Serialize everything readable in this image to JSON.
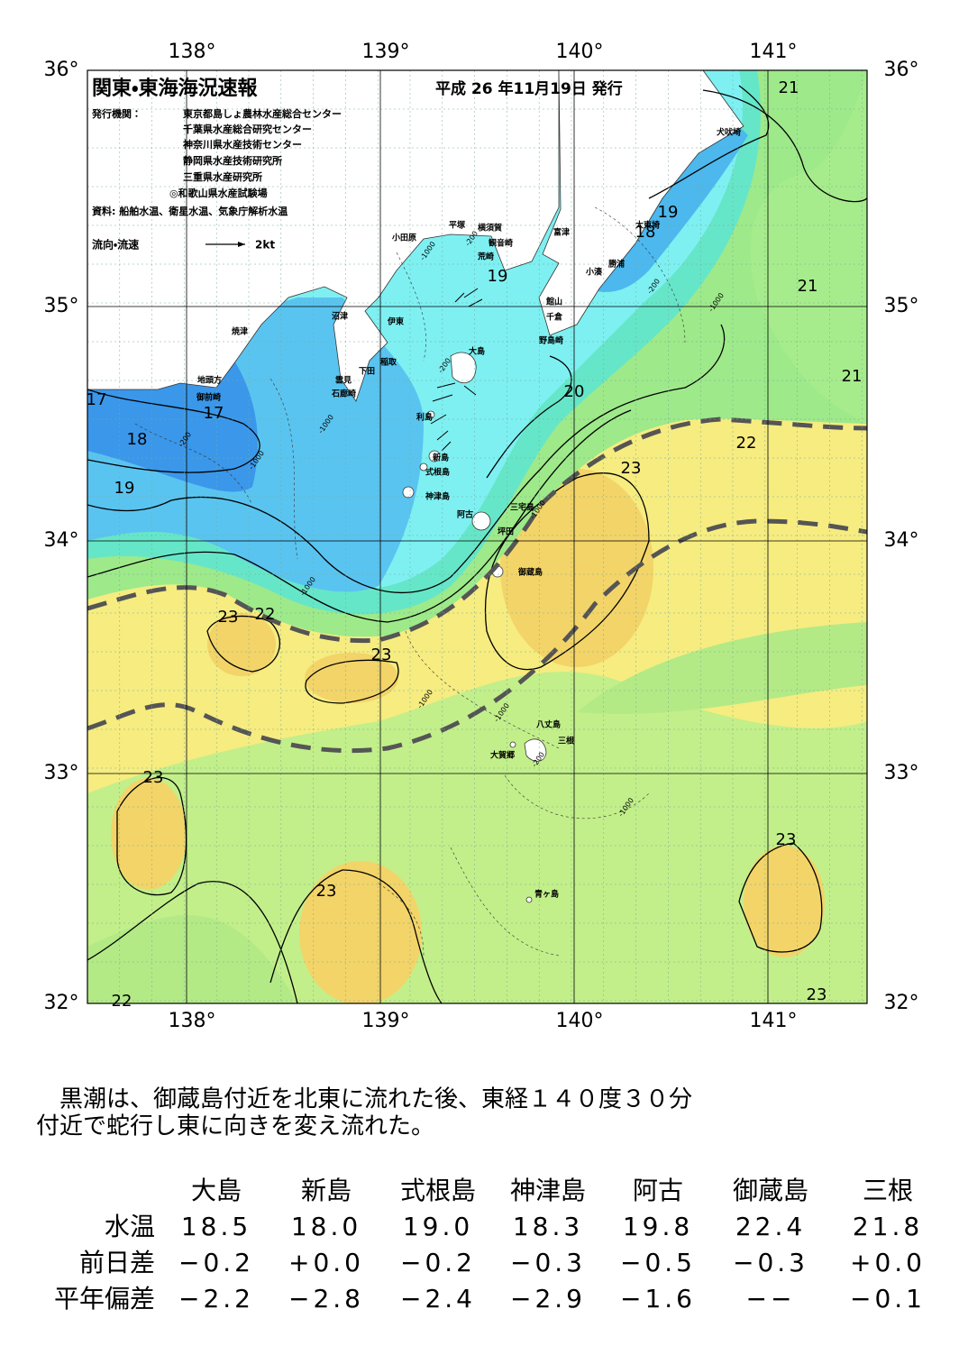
{
  "header": {
    "title": "関東・東海海況速報",
    "issued": "平成 26 年11月19日 発行",
    "issuer_label": "発行機関：",
    "issuers": [
      "東京都島しょ農林水産総合センター",
      "千葉県水産総合研究センター",
      "神奈川県水産技術センター",
      "静岡県水産技術研究所",
      "三重県水産研究所",
      "◎和歌山県水産試験場"
    ],
    "source": "資料: 船舶水温、衛星水温、気象庁解析水温",
    "current_legend": "流向・流速",
    "current_scale": "2kt"
  },
  "map": {
    "lon_labels": [
      "138°",
      "139°",
      "140°",
      "141°"
    ],
    "lat_labels": [
      "36°",
      "35°",
      "34°",
      "33°",
      "32°"
    ],
    "places": [
      "犬吠埼",
      "太東埼",
      "勝浦",
      "小湊",
      "富津",
      "横須賀",
      "観音崎",
      "荒崎",
      "平塚",
      "小田原",
      "館山",
      "千倉",
      "野島崎",
      "沼津",
      "伊東",
      "焼津",
      "稲取",
      "下田",
      "雲見",
      "石廊崎",
      "地頭方",
      "御前崎",
      "大島",
      "利島",
      "新島",
      "式根島",
      "神津島",
      "三宅島",
      "阿古",
      "坪田",
      "御蔵島",
      "八丈島",
      "三根",
      "大賀郷",
      "青ヶ島"
    ],
    "temperature_labels": [
      "21",
      "19",
      "18",
      "21",
      "21",
      "20",
      "22",
      "23",
      "17",
      "17",
      "18",
      "19",
      "19",
      "23",
      "22",
      "23",
      "23",
      "23",
      "23",
      "23",
      "22"
    ],
    "depth_labels": [
      "-200",
      "-1000",
      "-200",
      "-1000",
      "-200",
      "-1000",
      "-200",
      "-1000",
      "-1000",
      "-1000",
      "-1000",
      "-1000",
      "-200",
      "-1000"
    ]
  },
  "summary": [
    "　黒潮は、御蔵島付近を北東に流れた後、東経１４０度３０分",
    "付近で蛇行し東に向きを変え流れた。"
  ],
  "table": {
    "columns": [
      "大島",
      "新島",
      "式根島",
      "神津島",
      "阿古",
      "御蔵島",
      "三根"
    ],
    "rows": [
      [
        "水温",
        "18.5",
        "18.0",
        "19.0",
        "18.3",
        "19.8",
        "22.4",
        "21.8"
      ],
      [
        "前日差",
        "−0.2",
        "+0.0",
        "−0.2",
        "−0.3",
        "−0.5",
        "−0.3",
        "+0.0"
      ],
      [
        "平年偏差",
        "−2.2",
        "−2.8",
        "−2.4",
        "−2.9",
        "−1.6",
        "−−",
        "−0.1"
      ]
    ]
  }
}
